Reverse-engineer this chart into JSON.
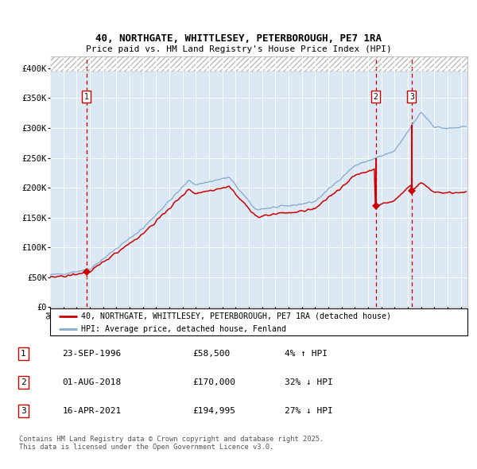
{
  "title1": "40, NORTHGATE, WHITTLESEY, PETERBOROUGH, PE7 1RA",
  "title2": "Price paid vs. HM Land Registry's House Price Index (HPI)",
  "legend_red": "40, NORTHGATE, WHITTLESEY, PETERBOROUGH, PE7 1RA (detached house)",
  "legend_blue": "HPI: Average price, detached house, Fenland",
  "transactions": [
    {
      "num": 1,
      "date": "23-SEP-1996",
      "price": 58500,
      "price_str": "£58,500",
      "rel": "4% ↑ HPI",
      "year": 1996.73
    },
    {
      "num": 2,
      "date": "01-AUG-2018",
      "price": 170000,
      "price_str": "£170,000",
      "rel": "32% ↓ HPI",
      "year": 2018.58
    },
    {
      "num": 3,
      "date": "16-APR-2021",
      "price": 194995,
      "price_str": "£194,995",
      "rel": "27% ↓ HPI",
      "year": 2021.29
    }
  ],
  "xmin": 1994.0,
  "xmax": 2025.5,
  "ymin": 0,
  "ymax": 420000,
  "yticks": [
    0,
    50000,
    100000,
    150000,
    200000,
    250000,
    300000,
    350000,
    400000
  ],
  "ytick_labels": [
    "£0",
    "£50K",
    "£100K",
    "£150K",
    "£200K",
    "£250K",
    "£300K",
    "£350K",
    "£400K"
  ],
  "plot_bg": "#dce9f5",
  "red_color": "#cc0000",
  "blue_color": "#88aacc",
  "grid_color": "#ffffff",
  "footnote": "Contains HM Land Registry data © Crown copyright and database right 2025.\nThis data is licensed under the Open Government Licence v3.0."
}
